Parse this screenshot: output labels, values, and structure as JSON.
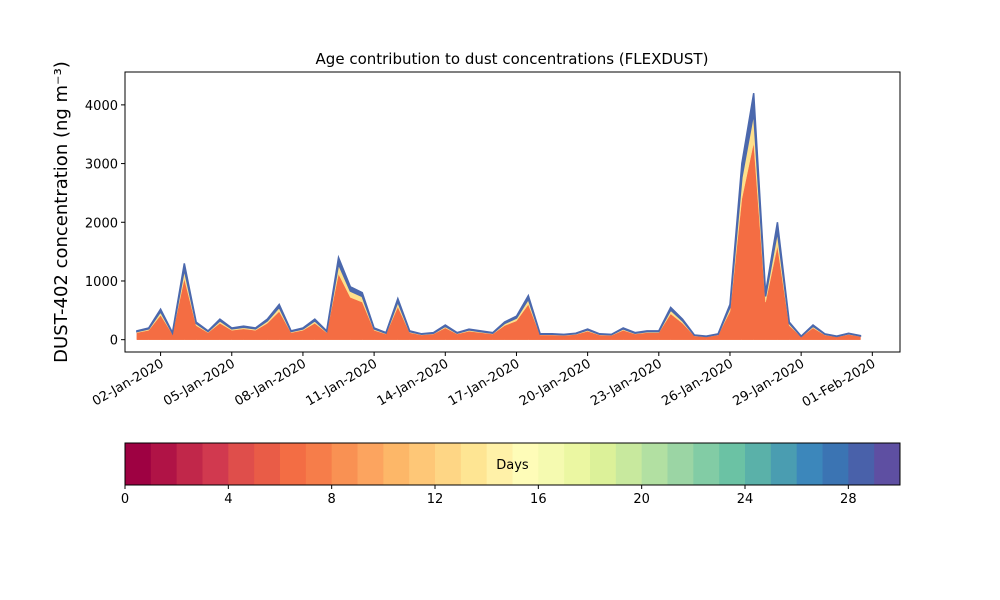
{
  "chart_data": {
    "type": "stacked_area",
    "title": "Age contribution to dust concentrations (FLEXDUST)",
    "y_label": "DUST-402 concentration (ng m⁻³)",
    "x": [
      "2020-01-01T00:00",
      "2020-01-01T12:00",
      "2020-01-02T00:00",
      "2020-01-02T12:00",
      "2020-01-03T00:00",
      "2020-01-03T12:00",
      "2020-01-04T00:00",
      "2020-01-04T12:00",
      "2020-01-05T00:00",
      "2020-01-05T12:00",
      "2020-01-06T00:00",
      "2020-01-06T12:00",
      "2020-01-07T00:00",
      "2020-01-07T12:00",
      "2020-01-08T00:00",
      "2020-01-08T12:00",
      "2020-01-09T00:00",
      "2020-01-09T12:00",
      "2020-01-10T00:00",
      "2020-01-10T12:00",
      "2020-01-11T00:00",
      "2020-01-11T12:00",
      "2020-01-12T00:00",
      "2020-01-12T12:00",
      "2020-01-13T00:00",
      "2020-01-13T12:00",
      "2020-01-14T00:00",
      "2020-01-14T12:00",
      "2020-01-15T00:00",
      "2020-01-15T12:00",
      "2020-01-16T00:00",
      "2020-01-16T12:00",
      "2020-01-17T00:00",
      "2020-01-17T12:00",
      "2020-01-18T00:00",
      "2020-01-18T12:00",
      "2020-01-19T00:00",
      "2020-01-19T12:00",
      "2020-01-20T00:00",
      "2020-01-20T12:00",
      "2020-01-21T00:00",
      "2020-01-21T12:00",
      "2020-01-22T00:00",
      "2020-01-22T12:00",
      "2020-01-23T00:00",
      "2020-01-23T12:00",
      "2020-01-24T00:00",
      "2020-01-24T12:00",
      "2020-01-25T00:00",
      "2020-01-25T12:00",
      "2020-01-26T00:00",
      "2020-01-26T12:00",
      "2020-01-27T00:00",
      "2020-01-27T12:00",
      "2020-01-28T00:00",
      "2020-01-28T12:00",
      "2020-01-29T00:00",
      "2020-01-29T12:00",
      "2020-01-30T00:00",
      "2020-01-30T12:00",
      "2020-01-31T00:00",
      "2020-01-31T12:00"
    ],
    "series": [
      {
        "color": "#f46d43",
        "values": [
          120,
          160,
          416,
          96,
          1040,
          240,
          120,
          280,
          160,
          184,
          160,
          280,
          480,
          120,
          160,
          280,
          120,
          1120,
          720,
          640,
          160,
          96,
          560,
          120,
          80,
          96,
          200,
          96,
          144,
          120,
          96,
          240,
          320,
          600,
          80,
          80,
          72,
          88,
          144,
          80,
          72,
          160,
          96,
          120,
          120,
          440,
          280,
          64,
          48,
          80,
          480,
          2400,
          3360,
          640,
          1600,
          240,
          48,
          200,
          80,
          48,
          88,
          56
        ]
      },
      {
        "color": "#fee08b",
        "values": [
          18,
          24,
          62,
          14,
          156,
          36,
          18,
          42,
          24,
          28,
          24,
          42,
          72,
          18,
          24,
          42,
          18,
          168,
          108,
          96,
          24,
          14,
          84,
          18,
          12,
          14,
          30,
          14,
          22,
          18,
          14,
          36,
          48,
          90,
          12,
          12,
          11,
          13,
          22,
          12,
          11,
          24,
          14,
          18,
          18,
          66,
          42,
          10,
          7,
          12,
          72,
          360,
          504,
          96,
          240,
          36,
          7,
          30,
          12,
          7,
          13,
          8
        ]
      },
      {
        "color": "#4b68ad",
        "values": [
          12,
          16,
          42,
          10,
          104,
          24,
          12,
          28,
          16,
          18,
          16,
          28,
          48,
          12,
          16,
          28,
          12,
          112,
          72,
          64,
          16,
          10,
          56,
          12,
          8,
          10,
          20,
          10,
          14,
          12,
          10,
          24,
          32,
          60,
          8,
          8,
          7,
          9,
          14,
          8,
          7,
          16,
          10,
          12,
          12,
          44,
          28,
          6,
          5,
          8,
          48,
          240,
          336,
          64,
          160,
          24,
          5,
          20,
          8,
          5,
          9,
          6
        ]
      }
    ],
    "xlim": [
      "2019-12-31T12:00",
      "2020-02-02T04:00"
    ],
    "xticks": [
      {
        "value": "2020-01-02",
        "label": "02-Jan-2020"
      },
      {
        "value": "2020-01-05",
        "label": "05-Jan-2020"
      },
      {
        "value": "2020-01-08",
        "label": "08-Jan-2020"
      },
      {
        "value": "2020-01-11",
        "label": "11-Jan-2020"
      },
      {
        "value": "2020-01-14",
        "label": "14-Jan-2020"
      },
      {
        "value": "2020-01-17",
        "label": "17-Jan-2020"
      },
      {
        "value": "2020-01-20",
        "label": "20-Jan-2020"
      },
      {
        "value": "2020-01-23",
        "label": "23-Jan-2020"
      },
      {
        "value": "2020-01-26",
        "label": "26-Jan-2020"
      },
      {
        "value": "2020-01-29",
        "label": "29-Jan-2020"
      },
      {
        "value": "2020-02-01",
        "label": "01-Feb-2020"
      }
    ],
    "ylim": [
      -210,
      4560
    ],
    "yticks": [
      0,
      1000,
      2000,
      3000,
      4000
    ],
    "colorbar": {
      "label": "Days",
      "lim": [
        0,
        30
      ],
      "ticks": [
        0,
        4,
        8,
        12,
        16,
        20,
        24,
        28
      ],
      "colors": [
        "#9e0142",
        "#b01346",
        "#c1274a",
        "#d1394f",
        "#df4e4b",
        "#e95c47",
        "#f36d44",
        "#f67d4a",
        "#f99153",
        "#fca45f",
        "#fdb768",
        "#fec777",
        "#fed685",
        "#fee593",
        "#fff1a8",
        "#fefcb8",
        "#f5fab0",
        "#ebf7a2",
        "#dcf199",
        "#c8e99e",
        "#b2e0a2",
        "#9bd5a4",
        "#82cca5",
        "#6bc2a4",
        "#5ab1a9",
        "#4a9db1",
        "#3c87bb",
        "#3b74b3",
        "#4961aa",
        "#5e4fa2"
      ]
    }
  }
}
